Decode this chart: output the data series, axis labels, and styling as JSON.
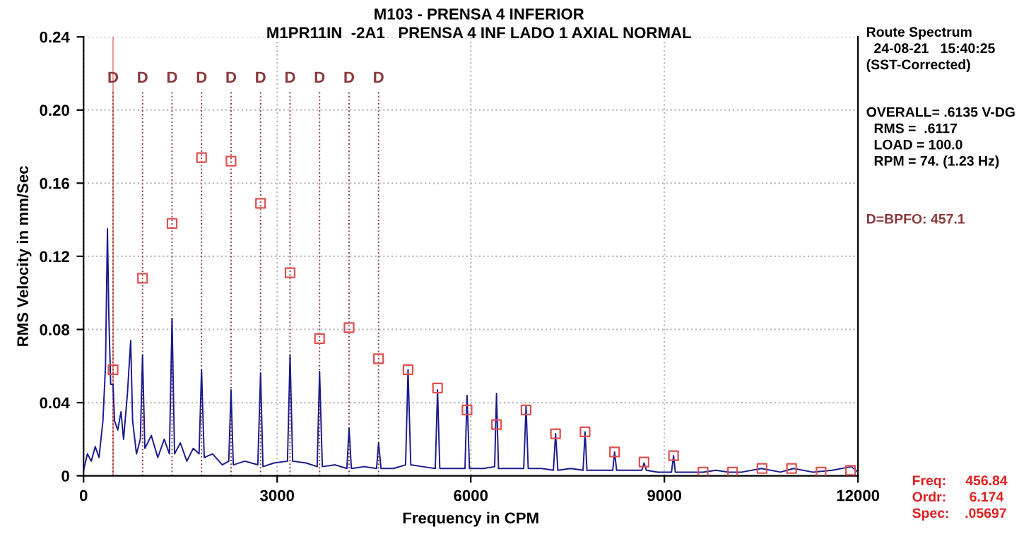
{
  "chart_data": {
    "type": "line",
    "title": "M103 - PRENSA 4 INFERIOR",
    "subtitle": "M1PR11IN  -2A1   PRENSA 4 INF LADO 1 AXIAL NORMAL",
    "xlabel": "Frequency in CPM",
    "ylabel": "RMS Velocity in mm/Sec",
    "xlim": [
      0,
      12000
    ],
    "xticks": [
      0,
      3000,
      6000,
      9000,
      12000
    ],
    "ylim": [
      0,
      0.24
    ],
    "yticks": [
      0,
      0.04,
      0.08,
      0.12,
      0.16,
      {
        "value": 0.2,
        "label": "0.20"
      },
      0.24
    ],
    "grid": true,
    "series": [
      {
        "color": "#1a1a8c",
        "marker": "none",
        "line_style": "solid",
        "x": [
          0,
          60,
          120,
          180,
          240,
          300,
          340,
          370,
          390,
          420,
          457,
          480,
          530,
          580,
          620,
          680,
          730,
          760,
          820,
          880,
          914,
          950,
          1050,
          1150,
          1250,
          1330,
          1371,
          1410,
          1500,
          1600,
          1700,
          1790,
          1828,
          1870,
          2000,
          2150,
          2250,
          2285,
          2320,
          2500,
          2700,
          2743,
          2780,
          2950,
          3160,
          3200,
          3240,
          3450,
          3620,
          3657,
          3700,
          3900,
          4080,
          4114,
          4150,
          4350,
          4540,
          4571,
          4610,
          4800,
          4990,
          5028,
          5070,
          5250,
          5450,
          5485,
          5520,
          5700,
          5910,
          5942,
          5980,
          6200,
          6370,
          6399,
          6430,
          6650,
          6820,
          6857,
          6890,
          7100,
          7280,
          7314,
          7350,
          7550,
          7740,
          7771,
          7800,
          8000,
          8200,
          8228,
          8260,
          8450,
          8650,
          8685,
          8720,
          8900,
          9110,
          9142,
          9170,
          9400,
          9600,
          9800,
          10000,
          10200,
          10500,
          10800,
          11000,
          11300,
          11600,
          11900,
          12000
        ],
        "values": [
          0.003,
          0.012,
          0.008,
          0.016,
          0.01,
          0.03,
          0.06,
          0.135,
          0.09,
          0.05,
          0.05,
          0.03,
          0.025,
          0.035,
          0.02,
          0.045,
          0.074,
          0.03,
          0.012,
          0.02,
          0.066,
          0.015,
          0.022,
          0.01,
          0.02,
          0.012,
          0.086,
          0.012,
          0.018,
          0.008,
          0.015,
          0.012,
          0.058,
          0.01,
          0.012,
          0.006,
          0.008,
          0.047,
          0.006,
          0.008,
          0.006,
          0.056,
          0.005,
          0.007,
          0.008,
          0.066,
          0.008,
          0.007,
          0.005,
          0.057,
          0.005,
          0.006,
          0.004,
          0.026,
          0.004,
          0.005,
          0.004,
          0.018,
          0.004,
          0.004,
          0.006,
          0.058,
          0.006,
          0.005,
          0.004,
          0.047,
          0.004,
          0.004,
          0.004,
          0.044,
          0.004,
          0.004,
          0.005,
          0.045,
          0.004,
          0.004,
          0.004,
          0.038,
          0.004,
          0.004,
          0.003,
          0.023,
          0.003,
          0.004,
          0.003,
          0.024,
          0.003,
          0.003,
          0.003,
          0.013,
          0.003,
          0.003,
          0.003,
          0.007,
          0.003,
          0.002,
          0.002,
          0.011,
          0.002,
          0.002,
          0.002,
          0.003,
          0.002,
          0.002,
          0.004,
          0.002,
          0.004,
          0.002,
          0.003,
          0.005,
          0.002
        ]
      },
      {
        "type": "scatter",
        "color": "#e05050",
        "marker": "square",
        "x": [
          457.1,
          914.2,
          1371.3,
          1828.4,
          2285.5,
          2742.6,
          3199.7,
          3656.8,
          4113.9,
          4571.0,
          5028.1,
          5485.2,
          5942.3,
          6399.4,
          6856.5,
          7313.6,
          7770.7,
          8227.8,
          8684.9,
          9142.0,
          9599.1,
          10056.2,
          10513.3,
          10970.4,
          11427.5,
          11884.6
        ],
        "values": [
          0.058,
          0.108,
          0.138,
          0.174,
          0.172,
          0.149,
          0.111,
          0.075,
          0.081,
          0.064,
          0.058,
          0.048,
          0.036,
          0.028,
          0.036,
          0.023,
          0.024,
          0.013,
          0.0075,
          0.011,
          0.002,
          0.002,
          0.004,
          0.004,
          0.002,
          0.003
        ]
      }
    ],
    "ref_lines": [
      {
        "axis": "x",
        "value": 456.84,
        "color": "#e03030",
        "line_style": "solid"
      },
      {
        "axis": "x",
        "value": 457.1,
        "label": "D",
        "color": "#8b3a3a",
        "line_style": "dotted"
      },
      {
        "axis": "x",
        "value": 914.2,
        "label": "D",
        "color": "#8b3a3a",
        "line_style": "dotted"
      },
      {
        "axis": "x",
        "value": 1371.3,
        "label": "D",
        "color": "#8b3a3a",
        "line_style": "dotted"
      },
      {
        "axis": "x",
        "value": 1828.4,
        "label": "D",
        "color": "#8b3a3a",
        "line_style": "dotted"
      },
      {
        "axis": "x",
        "value": 2285.5,
        "label": "D",
        "color": "#8b3a3a",
        "line_style": "dotted"
      },
      {
        "axis": "x",
        "value": 2742.6,
        "label": "D",
        "color": "#8b3a3a",
        "line_style": "dotted"
      },
      {
        "axis": "x",
        "value": 3199.7,
        "label": "D",
        "color": "#8b3a3a",
        "line_style": "dotted"
      },
      {
        "axis": "x",
        "value": 3656.8,
        "label": "D",
        "color": "#8b3a3a",
        "line_style": "dotted"
      },
      {
        "axis": "x",
        "value": 4113.9,
        "label": "D",
        "color": "#8b3a3a",
        "line_style": "dotted"
      },
      {
        "axis": "x",
        "value": 4571.0,
        "label": "D",
        "color": "#8b3a3a",
        "line_style": "dotted"
      }
    ],
    "annotations": [
      "Route Spectrum\n  24-08-21   15:40:25\n(SST-Corrected)",
      "OVERALL= .6135 V-DG\n  RMS =  .6117\n  LOAD = 100.0\n  RPM = 74. (1.23 Hz)",
      "D=BPFO: 457.1",
      "Freq:     456.84\nOrdr:      6.174\nSpec:    .05697"
    ]
  }
}
